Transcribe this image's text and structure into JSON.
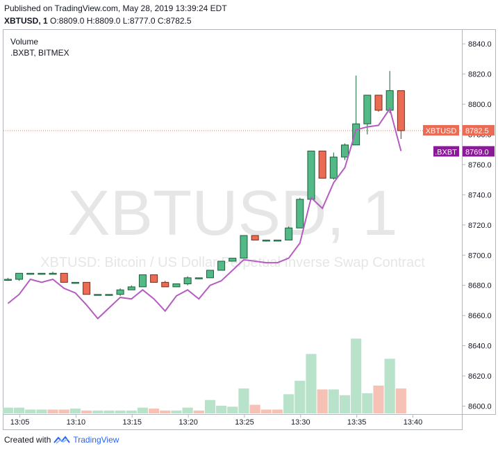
{
  "header": {
    "published": "Published on TradingView.com, May 28, 2019 13:39:24 EDT",
    "symbol_interval": "XBTUSD, 1",
    "open_label": "O:",
    "open": "8809.0",
    "high_label": "H:",
    "high": "8809.0",
    "low_label": "L:",
    "low": "8777.0",
    "close_label": "C:",
    "close": "8782.5"
  },
  "legend": {
    "volume": "Volume",
    "index": ".BXBT, BITMEX"
  },
  "watermark": {
    "symbol": "XBTUSD, 1",
    "description": "XBTUSD: Bitcoin / US Dollar Perpetual Inverse Swap Contract"
  },
  "footer": {
    "created_with": "Created with",
    "brand": "TradingView"
  },
  "colors": {
    "up": "#53b987",
    "up_border": "#1b5e3a",
    "down": "#eb6c54",
    "down_border": "#7a2a1a",
    "vol_up": "#b9e2cb",
    "vol_down": "#f7c2b6",
    "index_line": "#b45cc0",
    "price_label_bg": "#eb6c54",
    "index_label_bg": "#8a1a98"
  },
  "chart_data": {
    "type": "candlestick",
    "price_axis": {
      "ticks": [
        8600,
        8620,
        8640,
        8660,
        8680,
        8700,
        8720,
        8740,
        8760,
        8780,
        8800,
        8820,
        8840
      ],
      "tick_labels": [
        "8600.0",
        "8620.0",
        "8640.0",
        "8660.0",
        "8680.0",
        "8700.0",
        "8720.0",
        "8740.0",
        "8760.0",
        "8780.0",
        "8800.0",
        "8820.0",
        "8840.0"
      ]
    },
    "time_axis": {
      "labels": [
        "13:05",
        "13:10",
        "13:15",
        "13:20",
        "13:25",
        "13:30",
        "13:35",
        "13:40"
      ]
    },
    "last_price": {
      "label": "XBTUSD",
      "value": "8782.5",
      "price": 8782.5
    },
    "index_price": {
      "label": ".BXBT",
      "value": "8769.0",
      "price": 8769.0
    },
    "candles": [
      {
        "t": "13:04",
        "o": 8684,
        "h": 8685,
        "l": 8683,
        "c": 8684
      },
      {
        "t": "13:05",
        "o": 8684,
        "h": 8688,
        "l": 8683,
        "c": 8688
      },
      {
        "t": "13:06",
        "o": 8688,
        "h": 8688,
        "l": 8687,
        "c": 8688
      },
      {
        "t": "13:07",
        "o": 8688,
        "h": 8688,
        "l": 8687,
        "c": 8688
      },
      {
        "t": "13:08",
        "o": 8688,
        "h": 8689,
        "l": 8688,
        "c": 8688
      },
      {
        "t": "13:09",
        "o": 8688,
        "h": 8688,
        "l": 8682,
        "c": 8682
      },
      {
        "t": "13:10",
        "o": 8682,
        "h": 8682,
        "l": 8681,
        "c": 8682
      },
      {
        "t": "13:11",
        "o": 8682,
        "h": 8682,
        "l": 8674,
        "c": 8674
      },
      {
        "t": "13:12",
        "o": 8674,
        "h": 8674,
        "l": 8674,
        "c": 8674
      },
      {
        "t": "13:13",
        "o": 8674,
        "h": 8674,
        "l": 8673,
        "c": 8674
      },
      {
        "t": "13:14",
        "o": 8674,
        "h": 8678,
        "l": 8673,
        "c": 8677
      },
      {
        "t": "13:15",
        "o": 8677,
        "h": 8680,
        "l": 8677,
        "c": 8679
      },
      {
        "t": "13:16",
        "o": 8679,
        "h": 8687,
        "l": 8679,
        "c": 8687
      },
      {
        "t": "13:17",
        "o": 8687,
        "h": 8687,
        "l": 8682,
        "c": 8682
      },
      {
        "t": "13:18",
        "o": 8682,
        "h": 8683,
        "l": 8679,
        "c": 8679
      },
      {
        "t": "13:19",
        "o": 8679,
        "h": 8681,
        "l": 8679,
        "c": 8681
      },
      {
        "t": "13:20",
        "o": 8681,
        "h": 8686,
        "l": 8680,
        "c": 8685
      },
      {
        "t": "13:21",
        "o": 8685,
        "h": 8685,
        "l": 8684,
        "c": 8685
      },
      {
        "t": "13:22",
        "o": 8685,
        "h": 8690,
        "l": 8685,
        "c": 8690
      },
      {
        "t": "13:23",
        "o": 8690,
        "h": 8696,
        "l": 8690,
        "c": 8696
      },
      {
        "t": "13:24",
        "o": 8696,
        "h": 8698,
        "l": 8696,
        "c": 8698
      },
      {
        "t": "13:25",
        "o": 8698,
        "h": 8713,
        "l": 8698,
        "c": 8713
      },
      {
        "t": "13:26",
        "o": 8713,
        "h": 8713,
        "l": 8710,
        "c": 8710
      },
      {
        "t": "13:27",
        "o": 8710,
        "h": 8710,
        "l": 8709,
        "c": 8710
      },
      {
        "t": "13:28",
        "o": 8710,
        "h": 8710,
        "l": 8710,
        "c": 8710
      },
      {
        "t": "13:29",
        "o": 8710,
        "h": 8719,
        "l": 8710,
        "c": 8718
      },
      {
        "t": "13:30",
        "o": 8718,
        "h": 8738,
        "l": 8718,
        "c": 8737
      },
      {
        "t": "13:31",
        "o": 8737,
        "h": 8769,
        "l": 8737,
        "c": 8769
      },
      {
        "t": "13:32",
        "o": 8769,
        "h": 8769,
        "l": 8751,
        "c": 8751
      },
      {
        "t": "13:33",
        "o": 8751,
        "h": 8768,
        "l": 8750,
        "c": 8765
      },
      {
        "t": "13:34",
        "o": 8765,
        "h": 8774,
        "l": 8763,
        "c": 8773
      },
      {
        "t": "13:35",
        "o": 8773,
        "h": 8819,
        "l": 8773,
        "c": 8787
      },
      {
        "t": "13:36",
        "o": 8787,
        "h": 8806,
        "l": 8780,
        "c": 8806
      },
      {
        "t": "13:37",
        "o": 8806,
        "h": 8806,
        "l": 8795,
        "c": 8796
      },
      {
        "t": "13:38",
        "o": 8796,
        "h": 8822,
        "l": 8794,
        "c": 8809
      },
      {
        "t": "13:39",
        "o": 8809,
        "h": 8809,
        "l": 8777,
        "c": 8782.5
      }
    ],
    "volume": {
      "ylim": [
        0,
        100
      ],
      "values": [
        6,
        6,
        4,
        4,
        4,
        4,
        5,
        3,
        3,
        3,
        3,
        3,
        6,
        5,
        3,
        3,
        6,
        3,
        14,
        8,
        7,
        26,
        9,
        4,
        4,
        20,
        34,
        62,
        25,
        25,
        19,
        78,
        21,
        29,
        57,
        26
      ],
      "directions": [
        "u",
        "u",
        "u",
        "u",
        "d",
        "d",
        "u",
        "d",
        "u",
        "u",
        "u",
        "u",
        "u",
        "d",
        "d",
        "u",
        "u",
        "d",
        "u",
        "u",
        "u",
        "u",
        "d",
        "d",
        "d",
        "u",
        "u",
        "u",
        "d",
        "u",
        "u",
        "u",
        "u",
        "d",
        "u",
        "d"
      ]
    },
    "index_series": {
      "name": ".BXBT",
      "values": [
        8668,
        8674,
        8684,
        8682,
        8684,
        8678,
        8675,
        8667,
        8658,
        8665,
        8672,
        8671,
        8677,
        8671,
        8663,
        8673,
        8677,
        8671,
        8680,
        8683,
        8690,
        8697,
        8696,
        8695,
        8695,
        8698,
        8708,
        8738,
        8731,
        8748,
        8758,
        8783,
        8785,
        8786,
        8797,
        8769
      ]
    }
  }
}
